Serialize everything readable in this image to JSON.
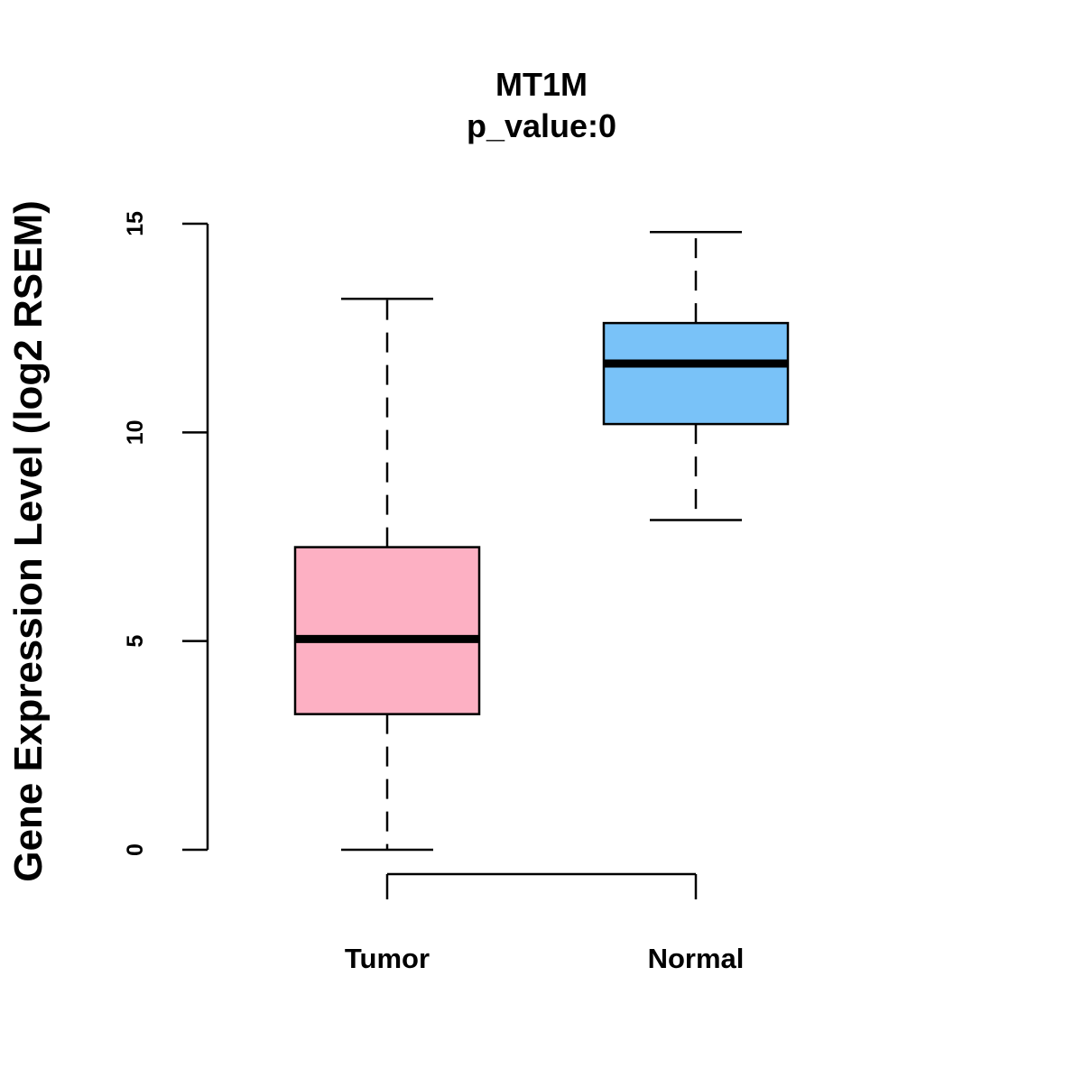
{
  "chart_data": {
    "type": "boxplot",
    "title": "MT1M",
    "subtitle": "p_value:0",
    "xlabel": "",
    "ylabel": "Gene Expression Level (log2 RSEM)",
    "ylim": [
      0,
      15
    ],
    "yticks": [
      0,
      5,
      10,
      15
    ],
    "ytick_labels": [
      "0",
      "5",
      "10",
      "15"
    ],
    "grid": false,
    "categories": [
      "Tumor",
      "Normal"
    ],
    "boxes": [
      {
        "category": "Tumor",
        "whisker_low": 0.0,
        "q1": 3.25,
        "median": 5.05,
        "q3": 7.25,
        "whisker_high": 13.2,
        "color": "#FDB0C3"
      },
      {
        "category": "Normal",
        "whisker_low": 7.9,
        "q1": 10.2,
        "median": 11.65,
        "q3": 12.62,
        "whisker_high": 14.8,
        "color": "#79C2F8"
      }
    ]
  }
}
